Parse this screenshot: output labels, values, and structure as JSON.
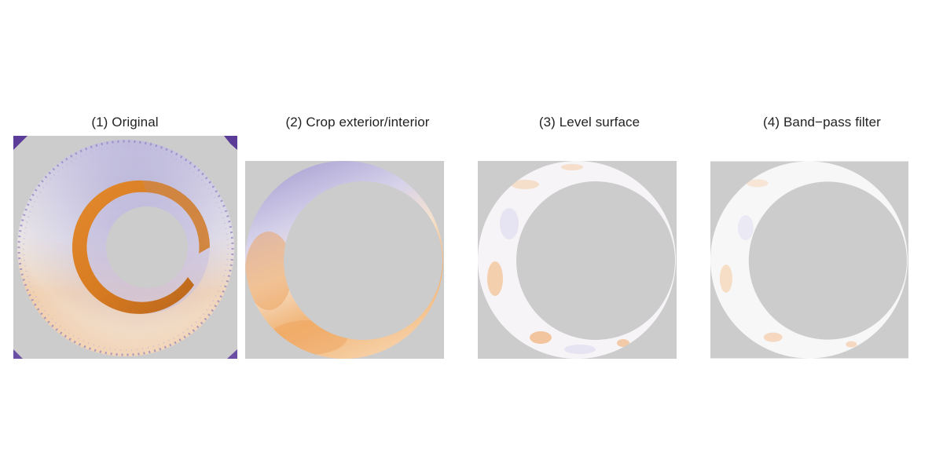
{
  "figure": {
    "panels": [
      {
        "title": "(1) Original"
      },
      {
        "title": "(2) Crop exterior/interior"
      },
      {
        "title": "(3) Level surface"
      },
      {
        "title": "(4) Band−pass filter"
      }
    ],
    "colors": {
      "background": "#ffffff",
      "masked_gray": "#cccccc",
      "orange": "#e8903a",
      "dark_orange": "#c8731f",
      "purple": "#7b6db0",
      "light_purple": "#b9b3dc",
      "neutral": "#f7f7f7"
    }
  }
}
